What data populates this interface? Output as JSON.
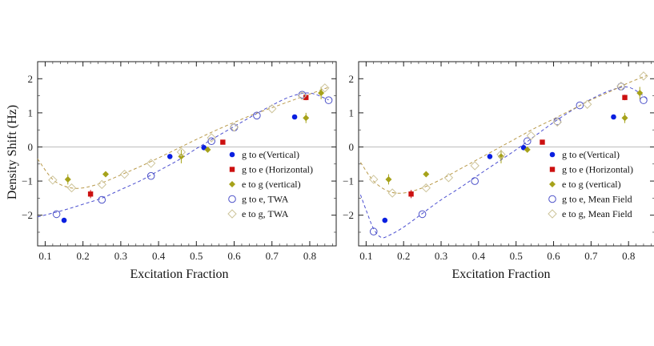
{
  "chart_data": [
    {
      "type": "scatter",
      "panel": "left",
      "xlabel": "Excitation Fraction",
      "ylabel": "Density Shift (Hz)",
      "xlim": [
        0.08,
        0.87
      ],
      "ylim": [
        -2.9,
        2.5
      ],
      "xticks": [
        0.1,
        0.2,
        0.3,
        0.4,
        0.5,
        0.6,
        0.7,
        0.8
      ],
      "yticks": [
        -2,
        -1,
        0,
        1,
        2
      ],
      "zero_line": true,
      "legend_position": "right",
      "series": [
        {
          "name": "g to e(Vertical)",
          "marker": "filled-circle",
          "color": "#0a1fe0",
          "x": [
            0.15,
            0.43,
            0.52,
            0.76
          ],
          "y": [
            -2.15,
            -0.28,
            -0.02,
            0.88
          ],
          "err": [
            0.07,
            0.06,
            0.06,
            0.07
          ]
        },
        {
          "name": "g to e (Horizontal)",
          "marker": "filled-square",
          "color": "#cc1010",
          "x": [
            0.22,
            0.57,
            0.79
          ],
          "y": [
            -1.38,
            0.14,
            1.45
          ],
          "err": [
            0.12,
            0.07,
            0.08
          ]
        },
        {
          "name": "e to g (vertical)",
          "marker": "filled-diamond",
          "color": "#a6a21a",
          "x": [
            0.16,
            0.26,
            0.46,
            0.53,
            0.79,
            0.83
          ],
          "y": [
            -0.95,
            -0.8,
            -0.28,
            -0.08,
            0.85,
            1.58
          ],
          "err": [
            0.15,
            0.08,
            0.2,
            0.08,
            0.15,
            0.18
          ]
        },
        {
          "name": "g to e, TWA",
          "marker": "open-circle",
          "color": "#4d52c9",
          "x": [
            0.13,
            0.25,
            0.38,
            0.54,
            0.6,
            0.66,
            0.78,
            0.85
          ],
          "y": [
            -1.97,
            -1.55,
            -0.85,
            0.17,
            0.57,
            0.92,
            1.53,
            1.37
          ],
          "fit_x": [
            0.08,
            0.15,
            0.2,
            0.25,
            0.3,
            0.35,
            0.4,
            0.45,
            0.5,
            0.55,
            0.6,
            0.65,
            0.7,
            0.75,
            0.8,
            0.85
          ],
          "fit_y": [
            -2.05,
            -1.85,
            -1.68,
            -1.5,
            -1.25,
            -1.0,
            -0.7,
            -0.4,
            -0.05,
            0.28,
            0.6,
            0.92,
            1.22,
            1.48,
            1.58,
            1.38
          ]
        },
        {
          "name": "e to g, TWA",
          "marker": "open-diamond",
          "color": "#cdc49a",
          "x": [
            0.12,
            0.17,
            0.25,
            0.31,
            0.38,
            0.46,
            0.54,
            0.6,
            0.7,
            0.78,
            0.84
          ],
          "y": [
            -0.97,
            -1.2,
            -1.1,
            -0.8,
            -0.48,
            -0.15,
            0.27,
            0.58,
            1.12,
            1.5,
            1.73
          ],
          "fit_x": [
            0.08,
            0.12,
            0.16,
            0.2,
            0.25,
            0.3,
            0.35,
            0.4,
            0.45,
            0.5,
            0.55,
            0.6,
            0.65,
            0.7,
            0.75,
            0.8,
            0.85
          ],
          "fit_y": [
            -0.35,
            -0.95,
            -1.18,
            -1.2,
            -1.05,
            -0.82,
            -0.58,
            -0.32,
            -0.05,
            0.22,
            0.48,
            0.72,
            0.95,
            1.15,
            1.35,
            1.55,
            1.75
          ]
        }
      ]
    },
    {
      "type": "scatter",
      "panel": "right",
      "xlabel": "Excitation Fraction",
      "ylabel": "",
      "xlim": [
        0.08,
        0.87
      ],
      "ylim": [
        -2.9,
        2.5
      ],
      "xticks": [
        0.1,
        0.2,
        0.3,
        0.4,
        0.5,
        0.6,
        0.7,
        0.8
      ],
      "yticks": [
        -2,
        -1,
        0,
        1,
        2
      ],
      "zero_line": true,
      "legend_position": "right",
      "series": [
        {
          "name": "g to e(Vertical)",
          "marker": "filled-circle",
          "color": "#0a1fe0",
          "x": [
            0.15,
            0.43,
            0.52,
            0.76
          ],
          "y": [
            -2.15,
            -0.28,
            -0.02,
            0.88
          ],
          "err": [
            0.07,
            0.06,
            0.06,
            0.07
          ]
        },
        {
          "name": "g to e (Horizontal)",
          "marker": "filled-square",
          "color": "#cc1010",
          "x": [
            0.22,
            0.57,
            0.79
          ],
          "y": [
            -1.38,
            0.14,
            1.45
          ],
          "err": [
            0.12,
            0.07,
            0.08
          ]
        },
        {
          "name": "e to g (vertical)",
          "marker": "filled-diamond",
          "color": "#a6a21a",
          "x": [
            0.16,
            0.26,
            0.46,
            0.53,
            0.79,
            0.83
          ],
          "y": [
            -0.95,
            -0.8,
            -0.28,
            -0.08,
            0.85,
            1.58
          ],
          "err": [
            0.15,
            0.08,
            0.2,
            0.08,
            0.15,
            0.18
          ]
        },
        {
          "name": "g to e, Mean Field",
          "marker": "open-circle",
          "color": "#4d52c9",
          "x": [
            0.12,
            0.25,
            0.39,
            0.53,
            0.61,
            0.67,
            0.78,
            0.84
          ],
          "y": [
            -2.48,
            -1.97,
            -1.0,
            0.17,
            0.75,
            1.22,
            1.77,
            1.37
          ],
          "fit_x": [
            0.085,
            0.1,
            0.12,
            0.14,
            0.16,
            0.2,
            0.25,
            0.3,
            0.35,
            0.4,
            0.45,
            0.5,
            0.55,
            0.6,
            0.65,
            0.7,
            0.75,
            0.8,
            0.85
          ],
          "fit_y": [
            -1.4,
            -1.85,
            -2.4,
            -2.65,
            -2.6,
            -2.35,
            -1.95,
            -1.55,
            -1.2,
            -0.82,
            -0.45,
            -0.08,
            0.32,
            0.72,
            1.08,
            1.4,
            1.65,
            1.75,
            1.42
          ]
        },
        {
          "name": "e to g, Mean Field",
          "marker": "open-diamond",
          "color": "#cdc49a",
          "x": [
            0.12,
            0.17,
            0.26,
            0.32,
            0.39,
            0.46,
            0.54,
            0.61,
            0.69,
            0.78,
            0.84
          ],
          "y": [
            -0.95,
            -1.35,
            -1.2,
            -0.9,
            -0.55,
            -0.22,
            0.33,
            0.73,
            1.25,
            1.78,
            2.08
          ],
          "fit_x": [
            0.085,
            0.12,
            0.16,
            0.2,
            0.25,
            0.3,
            0.35,
            0.4,
            0.45,
            0.5,
            0.55,
            0.6,
            0.65,
            0.7,
            0.75,
            0.8,
            0.85
          ],
          "fit_y": [
            -0.45,
            -1.0,
            -1.3,
            -1.35,
            -1.2,
            -0.95,
            -0.65,
            -0.35,
            -0.05,
            0.25,
            0.55,
            0.82,
            1.1,
            1.38,
            1.62,
            1.88,
            2.1
          ]
        }
      ]
    }
  ]
}
